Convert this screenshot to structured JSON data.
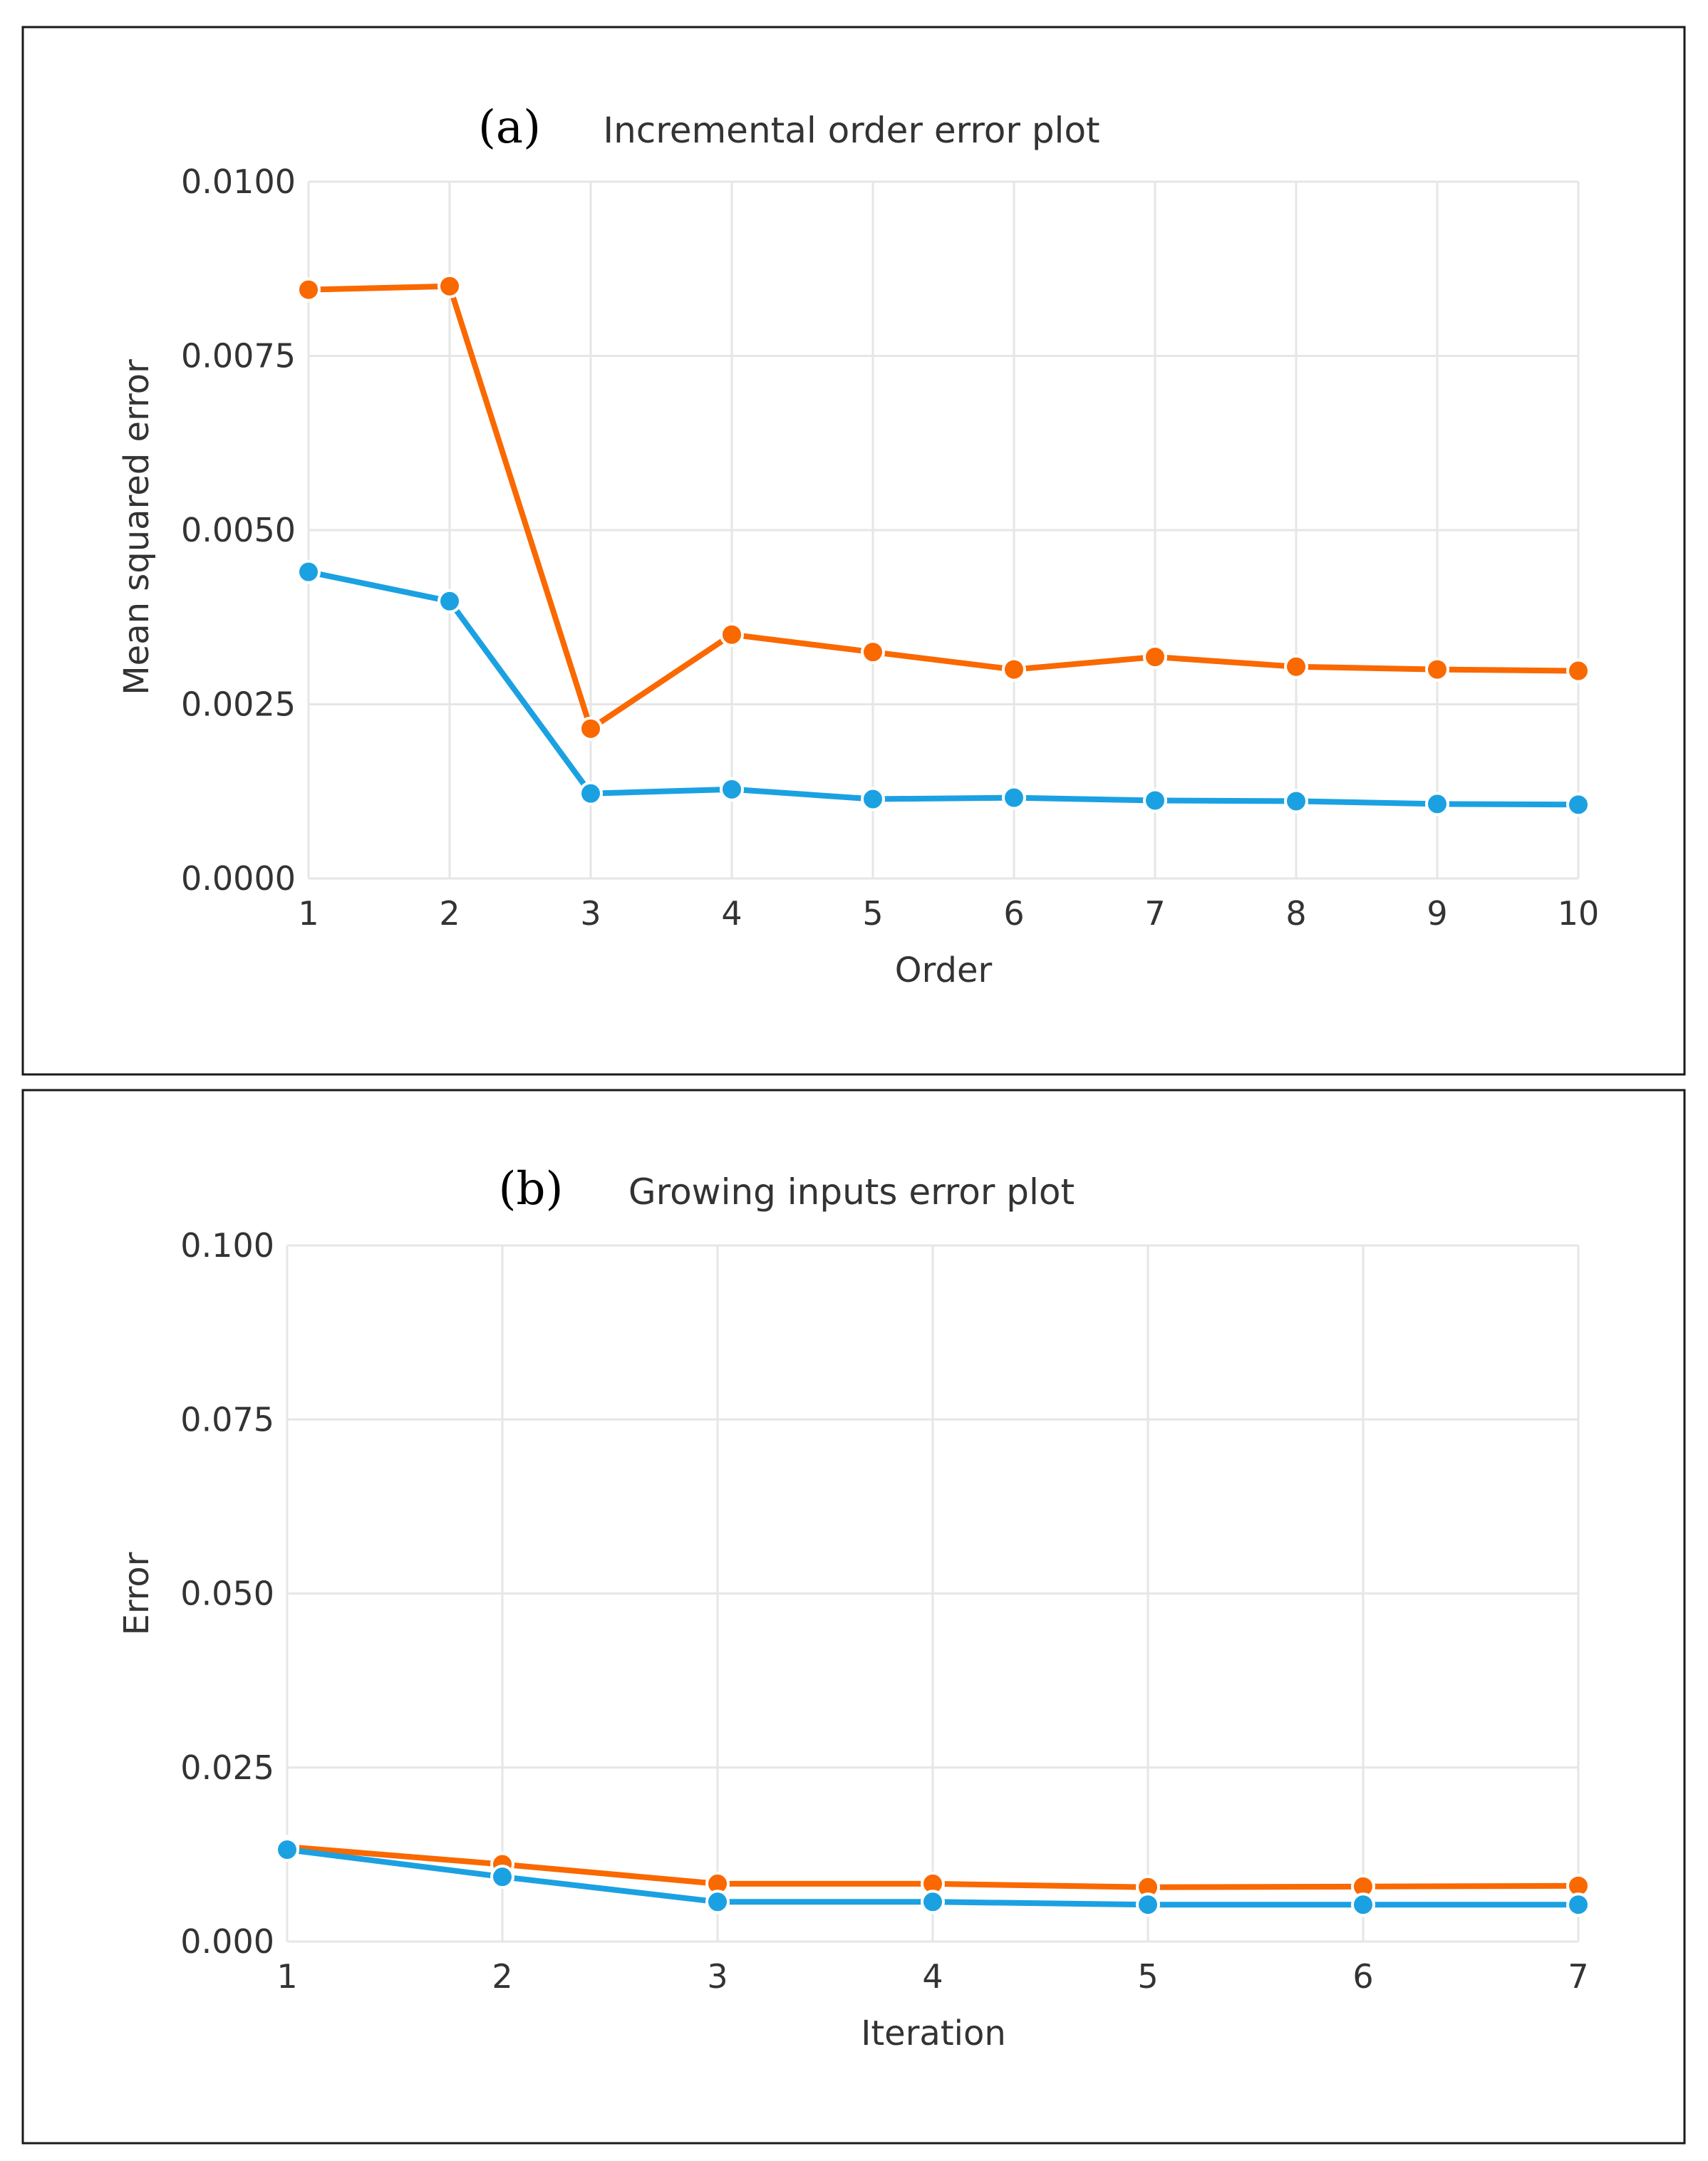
{
  "colors": {
    "series_blue": "#1ba1e2",
    "series_orange": "#fa6800"
  },
  "chart_data": [
    {
      "type": "line",
      "panel_label": "(a)",
      "title": "Incremental order error plot",
      "xlabel": "Order",
      "ylabel": "Mean squared error",
      "x": [
        1,
        2,
        3,
        4,
        5,
        6,
        7,
        8,
        9,
        10
      ],
      "xlim": [
        1,
        10
      ],
      "ylim": [
        0,
        0.01
      ],
      "xticks": [
        "1",
        "2",
        "3",
        "4",
        "5",
        "6",
        "7",
        "8",
        "9",
        "10"
      ],
      "yticks": [
        {
          "value": 0.0,
          "label": "0.0000"
        },
        {
          "value": 0.0025,
          "label": "0.0025"
        },
        {
          "value": 0.005,
          "label": "0.0050"
        },
        {
          "value": 0.0075,
          "label": "0.0075"
        },
        {
          "value": 0.01,
          "label": "0.0100"
        }
      ],
      "grid": true,
      "series": [
        {
          "name": "orange",
          "color": "#fa6800",
          "values": [
            0.00845,
            0.0085,
            0.00215,
            0.0035,
            0.00325,
            0.003,
            0.00318,
            0.00304,
            0.003,
            0.00298
          ]
        },
        {
          "name": "blue",
          "color": "#1ba1e2",
          "values": [
            0.0044,
            0.00398,
            0.00122,
            0.00128,
            0.00114,
            0.00116,
            0.00112,
            0.00111,
            0.00107,
            0.00106
          ]
        }
      ]
    },
    {
      "type": "line",
      "panel_label": "(b)",
      "title": "Growing inputs error plot",
      "xlabel": "Iteration",
      "ylabel": "Error",
      "x": [
        1,
        2,
        3,
        4,
        5,
        6,
        7
      ],
      "xlim": [
        1,
        7
      ],
      "ylim": [
        0,
        0.1
      ],
      "xticks": [
        "1",
        "2",
        "3",
        "4",
        "5",
        "6",
        "7"
      ],
      "yticks": [
        {
          "value": 0.0,
          "label": "0.000"
        },
        {
          "value": 0.025,
          "label": "0.025"
        },
        {
          "value": 0.05,
          "label": "0.050"
        },
        {
          "value": 0.075,
          "label": "0.075"
        },
        {
          "value": 0.1,
          "label": "0.100"
        }
      ],
      "grid": true,
      "series": [
        {
          "name": "orange",
          "color": "#fa6800",
          "values": [
            0.0136,
            0.0111,
            0.0083,
            0.0083,
            0.0078,
            0.0079,
            0.008
          ]
        },
        {
          "name": "blue",
          "color": "#1ba1e2",
          "values": [
            0.0132,
            0.0093,
            0.0057,
            0.0057,
            0.0053,
            0.0053,
            0.0053
          ]
        }
      ]
    }
  ]
}
